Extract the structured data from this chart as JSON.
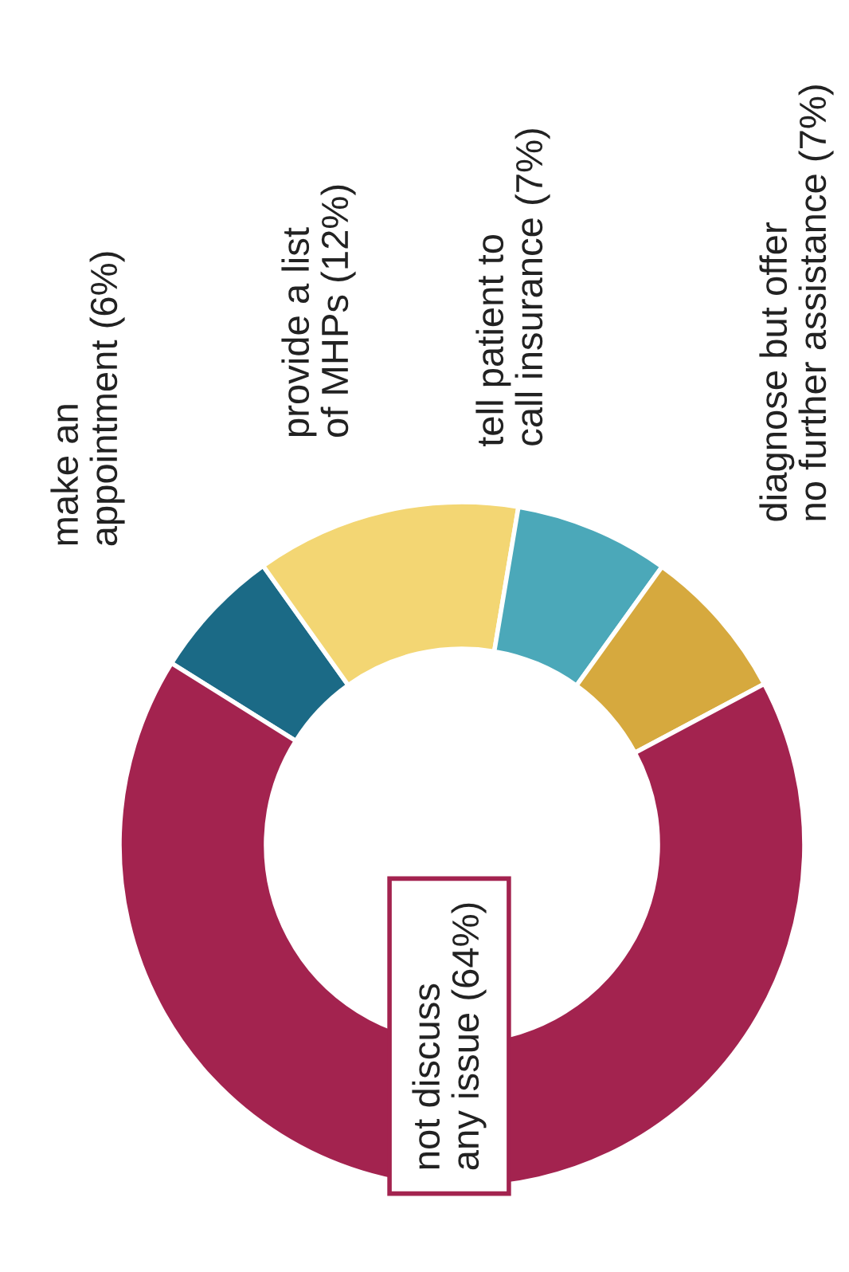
{
  "chart_data": {
    "type": "donut",
    "categories": [
      "make an\nappointment (6%)",
      "provide a list\nof MHPs (12%)",
      "tell patient to\ncall insurance (7%)",
      "diagnose but offer\nno further assistance (7%)",
      "not discuss\nany issue (64%)"
    ],
    "values": [
      6,
      12,
      7,
      7,
      64
    ],
    "colors": [
      "#1b6a86",
      "#f3d673",
      "#4ba8b9",
      "#d6a93e",
      "#a3234f"
    ]
  }
}
